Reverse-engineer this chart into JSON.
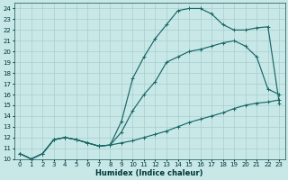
{
  "xlabel": "Humidex (Indice chaleur)",
  "bg_color": "#c8e8e8",
  "grid_color": "#a8cccc",
  "line_color": "#1a6666",
  "xlim": [
    -0.5,
    23.5
  ],
  "ylim": [
    10,
    24.5
  ],
  "xticks": [
    0,
    1,
    2,
    3,
    4,
    5,
    6,
    7,
    8,
    9,
    10,
    11,
    12,
    13,
    14,
    15,
    16,
    17,
    18,
    19,
    20,
    21,
    22,
    23
  ],
  "yticks": [
    10,
    11,
    12,
    13,
    14,
    15,
    16,
    17,
    18,
    19,
    20,
    21,
    22,
    23,
    24
  ],
  "curve1_x": [
    0,
    1,
    2,
    3,
    4,
    5,
    6,
    7,
    8,
    9,
    10,
    11,
    12,
    13,
    14,
    15,
    16,
    17,
    18,
    19,
    20,
    21,
    22,
    23
  ],
  "curve1_y": [
    10.5,
    10.0,
    10.5,
    11.8,
    12.0,
    11.8,
    11.5,
    11.2,
    11.3,
    11.5,
    11.7,
    12.0,
    12.3,
    12.6,
    13.0,
    13.4,
    13.7,
    14.0,
    14.3,
    14.7,
    15.0,
    15.2,
    15.3,
    15.5
  ],
  "curve2_x": [
    0,
    1,
    2,
    3,
    4,
    5,
    6,
    7,
    8,
    9,
    10,
    11,
    12,
    13,
    14,
    15,
    16,
    17,
    18,
    19,
    20,
    21,
    22,
    23
  ],
  "curve2_y": [
    10.5,
    10.0,
    10.5,
    11.8,
    12.0,
    11.8,
    11.5,
    11.2,
    11.3,
    12.5,
    14.5,
    16.0,
    17.2,
    19.0,
    19.5,
    20.0,
    20.2,
    20.5,
    20.8,
    21.0,
    20.5,
    19.5,
    16.5,
    16.0
  ],
  "curve3_x": [
    0,
    1,
    2,
    3,
    4,
    5,
    6,
    7,
    8,
    9,
    10,
    11,
    12,
    13,
    14,
    15,
    16,
    17,
    18,
    19,
    20,
    21,
    22,
    23
  ],
  "curve3_y": [
    10.5,
    10.0,
    10.5,
    11.8,
    12.0,
    11.8,
    11.5,
    11.2,
    11.3,
    13.5,
    17.5,
    19.5,
    21.2,
    22.5,
    23.8,
    24.0,
    24.0,
    23.5,
    22.5,
    22.0,
    22.0,
    22.2,
    22.3,
    15.2
  ]
}
